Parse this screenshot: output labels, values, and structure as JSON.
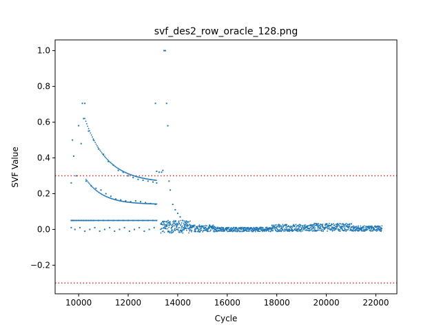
{
  "chart_data": {
    "type": "scatter",
    "title": "svf_des2_row_oracle_128.png",
    "xlabel": "Cycle",
    "ylabel": "SVF Value",
    "xlim": [
      9050,
      22850
    ],
    "ylim": [
      -0.36,
      1.06
    ],
    "xticks": [
      10000,
      12000,
      14000,
      16000,
      18000,
      20000,
      22000
    ],
    "xtick_labels": [
      "10000",
      "12000",
      "14000",
      "16000",
      "18000",
      "20000",
      "22000"
    ],
    "yticks": [
      -0.2,
      0.0,
      0.2,
      0.4,
      0.6,
      0.8,
      1.0
    ],
    "ytick_labels": [
      "−0.2",
      "0.0",
      "0.2",
      "0.4",
      "0.6",
      "0.8",
      "1.0"
    ],
    "grid": false,
    "legend": "none",
    "marker_color": "#1f77b4",
    "threshold_lines": [
      {
        "y": 0.3,
        "color": "#d62728",
        "style": "dotted"
      },
      {
        "y": -0.3,
        "color": "#d62728",
        "style": "dotted"
      }
    ],
    "series": [
      {
        "name": "",
        "x": [
          9700,
          9750,
          9800,
          9900,
          10000,
          10100,
          10200,
          10300,
          10400,
          10500,
          10600,
          10800,
          11000,
          11200,
          11400,
          11600,
          11800,
          12000,
          12200,
          12400,
          12600,
          12800,
          13000,
          13150,
          9750,
          9800,
          10000,
          10200,
          10400,
          10600,
          10800,
          11000,
          11200,
          11400,
          11600,
          11800,
          12000,
          12200,
          12400,
          12600,
          12800,
          13000,
          13150,
          9900,
          10100,
          10300,
          10500,
          10700,
          10900,
          11100,
          11300,
          11500,
          11700,
          11900,
          12100,
          12300,
          12500,
          12700,
          12900,
          13100,
          9700,
          9850,
          10050,
          10250,
          10450,
          10650,
          10850,
          11050,
          11250,
          11450,
          11650,
          11850,
          12050,
          12250,
          12450,
          12650,
          12850,
          13050,
          9700,
          10150,
          10250,
          13100,
          13450,
          13500,
          13550,
          13400,
          13600,
          13650,
          13700,
          13800,
          13900,
          14000,
          14100,
          14200,
          14300,
          13150,
          13250,
          13350,
          13450,
          13550,
          13650,
          13750,
          13850,
          13950,
          14050,
          14150,
          14250,
          14350,
          14500,
          14700,
          14900
        ],
        "y": [
          0.05,
          0.05,
          0.05,
          0.05,
          0.05,
          0.05,
          0.05,
          0.05,
          0.05,
          0.05,
          0.05,
          0.05,
          0.05,
          0.05,
          0.05,
          0.05,
          0.05,
          0.05,
          0.05,
          0.05,
          0.05,
          0.05,
          0.05,
          0.05,
          0.5,
          0.41,
          0.58,
          0.62,
          0.55,
          0.5,
          0.45,
          0.42,
          0.38,
          0.36,
          0.33,
          0.32,
          0.3,
          0.29,
          0.28,
          0.275,
          0.27,
          0.265,
          0.26,
          0.3,
          0.48,
          0.27,
          0.245,
          0.23,
          0.22,
          0.2,
          0.185,
          0.17,
          0.165,
          0.16,
          0.155,
          0.16,
          0.155,
          0.15,
          0.145,
          0.14,
          0.01,
          0.0,
          0.01,
          -0.01,
          0.0,
          0.01,
          -0.01,
          0.0,
          0.01,
          -0.01,
          0.0,
          0.01,
          -0.01,
          0.0,
          0.01,
          -0.01,
          0.0,
          0.01,
          0.26,
          0.705,
          0.705,
          0.705,
          1.0,
          1.0,
          0.705,
          0.33,
          0.58,
          0.27,
          0.22,
          0.14,
          0.11,
          0.09,
          0.07,
          0.05,
          0.04,
          0.325,
          0.32,
          0.32,
          0.03,
          0.02,
          0.04,
          0.01,
          0.02,
          0.0,
          0.01,
          -0.01,
          0.0,
          0.02,
          0.01,
          0.0,
          -0.01
        ]
      }
    ],
    "noise_band": [
      {
        "x_start": 13300,
        "x_end": 14500,
        "center": 0.015,
        "spread": 0.035
      },
      {
        "x_start": 14500,
        "x_end": 15500,
        "center": 0.005,
        "spread": 0.02
      },
      {
        "x_start": 15500,
        "x_end": 17800,
        "center": 0.0,
        "spread": 0.012
      },
      {
        "x_start": 17800,
        "x_end": 19500,
        "center": 0.008,
        "spread": 0.02
      },
      {
        "x_start": 19500,
        "x_end": 21000,
        "center": 0.012,
        "spread": 0.022
      },
      {
        "x_start": 21000,
        "x_end": 22250,
        "center": 0.005,
        "spread": 0.015
      }
    ]
  }
}
